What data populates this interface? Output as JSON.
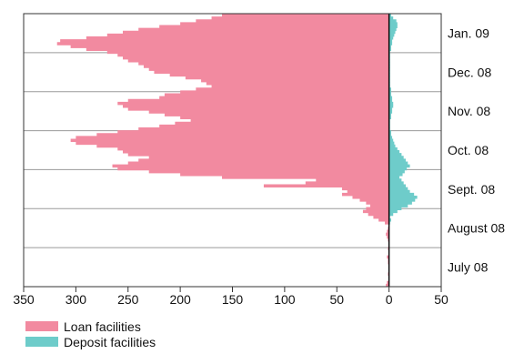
{
  "colors": {
    "loan": "#F28AA0",
    "deposit": "#6ECCCA",
    "axis": "#333333",
    "grid": "#9a9a9a",
    "zero_line": "#000000"
  },
  "chart_data": {
    "type": "bar",
    "orientation": "horizontal",
    "title": "",
    "xlabel": "",
    "ylabel": "",
    "xlim": [
      -350,
      50
    ],
    "x_ticks": [
      {
        "label": "350",
        "value": -350
      },
      {
        "label": "300",
        "value": -300
      },
      {
        "label": "250",
        "value": -250
      },
      {
        "label": "200",
        "value": -200
      },
      {
        "label": "150",
        "value": -150
      },
      {
        "label": "100",
        "value": -100
      },
      {
        "label": "50",
        "value": -50
      },
      {
        "label": "0",
        "value": 0
      },
      {
        "label": "50",
        "value": 50
      }
    ],
    "y_period_labels": [
      "Jan. 09",
      "Dec. 08",
      "Nov. 08",
      "Oct. 08",
      "Sept. 08",
      "August 08",
      "July 08"
    ],
    "grid": "horizontal",
    "legend_position": "bottom-left",
    "series": [
      {
        "name": "Loan facilities",
        "color": "#F28AA0",
        "values": [
          -3,
          -2,
          0,
          0,
          -1,
          0,
          0,
          0,
          -1,
          -1,
          -2,
          0,
          0,
          -1,
          0,
          0,
          -1,
          -2,
          -3,
          -2,
          -1,
          0,
          -4,
          -10,
          -15,
          -20,
          -25,
          -22,
          -18,
          -22,
          -28,
          -35,
          -45,
          -40,
          -45,
          -120,
          -80,
          -70,
          -160,
          -200,
          -230,
          -260,
          -265,
          -250,
          -240,
          -230,
          -250,
          -255,
          -260,
          -280,
          -300,
          -305,
          -300,
          -280,
          -260,
          -240,
          -220,
          -205,
          -190,
          -200,
          -215,
          -230,
          -250,
          -255,
          -260,
          -250,
          -220,
          -215,
          -200,
          -185,
          -170,
          -175,
          -180,
          -195,
          -210,
          -225,
          -230,
          -235,
          -240,
          -250,
          -255,
          -260,
          -270,
          -290,
          -305,
          -318,
          -315,
          -290,
          -270,
          -255,
          -240,
          -220,
          -200,
          -185,
          -170,
          -160
        ]
      },
      {
        "name": "Deposit facilities",
        "color": "#6ECCCA",
        "values": [
          0,
          0,
          0,
          0,
          0,
          0,
          0,
          0,
          0,
          0,
          0,
          0,
          0,
          0,
          0,
          0,
          0,
          0,
          0,
          0,
          0,
          0,
          1,
          2,
          1,
          4,
          8,
          12,
          18,
          22,
          25,
          27,
          24,
          20,
          18,
          16,
          14,
          12,
          10,
          13,
          15,
          17,
          20,
          18,
          16,
          14,
          12,
          10,
          8,
          6,
          5,
          4,
          3,
          2,
          2,
          1,
          1,
          1,
          1,
          2,
          2,
          3,
          3,
          4,
          4,
          3,
          3,
          2,
          2,
          2,
          1,
          1,
          1,
          1,
          1,
          1,
          1,
          1,
          1,
          1,
          1,
          1,
          1,
          2,
          2,
          3,
          3,
          4,
          5,
          6,
          7,
          8,
          8,
          7,
          4,
          2
        ]
      }
    ]
  }
}
